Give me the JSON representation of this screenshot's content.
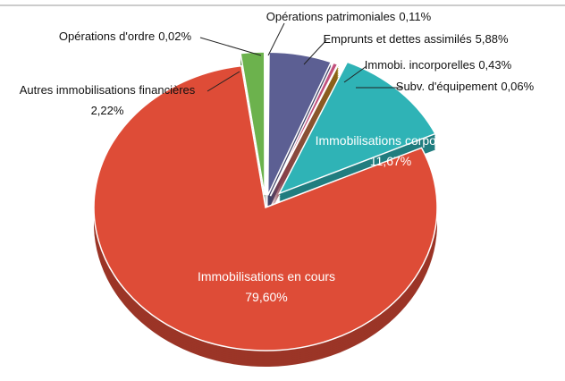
{
  "chart_data": {
    "type": "pie",
    "categories": [
      "Opérations patrimoniales",
      "Emprunts et dettes assimilés",
      "Immobi. incorporelles",
      "Subv. d'équipement",
      "Immobilisations corporelles",
      "Immobilisations en cours",
      "Autres immobilisations financières",
      "Opérations d'ordre"
    ],
    "values": [
      0.11,
      5.88,
      0.43,
      0.06,
      11.67,
      79.6,
      2.22,
      0.02
    ],
    "value_labels": [
      "0,11%",
      "5,88%",
      "0,43%",
      "0,06%",
      "11,67%",
      "79,60%",
      "2,22%",
      "0,02%"
    ],
    "colors": [
      "#2b2b2b",
      "#5c5f93",
      "#c2507c",
      "#c9a400",
      "#2fb3b6",
      "#de4c37",
      "#6cb24d",
      "#8a8a8a"
    ]
  }
}
